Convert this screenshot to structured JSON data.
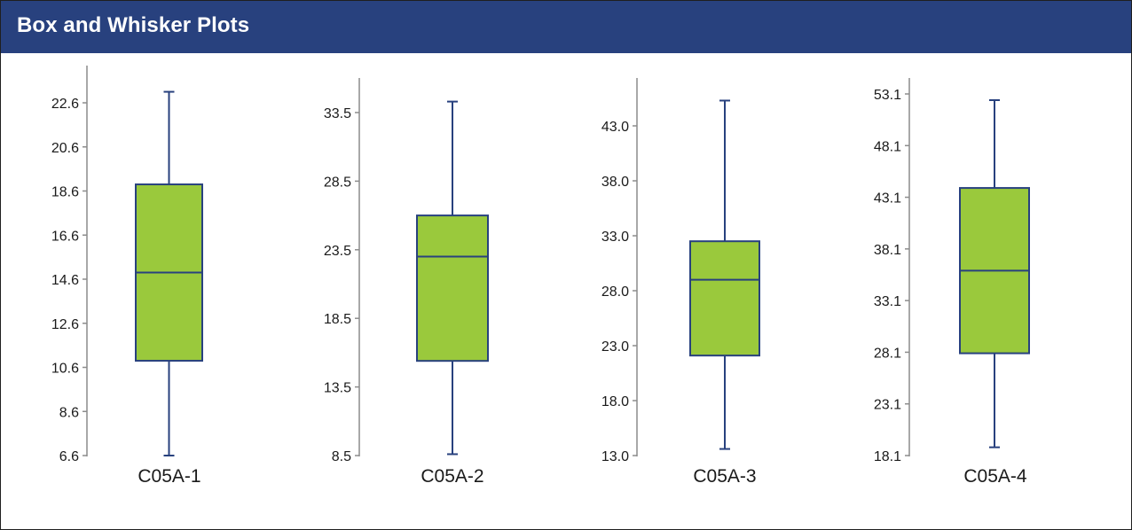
{
  "header": {
    "title": "Box and Whisker Plots"
  },
  "colors": {
    "header_bg": "#28417e",
    "box_fill": "#9ac93c",
    "box_stroke": "#28417e",
    "axis": "#8c8c8c"
  },
  "chart_data": [
    {
      "type": "box",
      "category": "C05A-1",
      "ylim": [
        6.6,
        23.6
      ],
      "yticks": [
        "6.6",
        "8.6",
        "10.6",
        "12.6",
        "14.6",
        "16.6",
        "18.6",
        "20.6",
        "22.6"
      ],
      "min": 6.6,
      "q1": 10.9,
      "median": 14.9,
      "q3": 18.9,
      "max": 23.1
    },
    {
      "type": "box",
      "category": "C05A-2",
      "ylim": [
        8.5,
        35.5
      ],
      "yticks": [
        "8.5",
        "13.5",
        "18.5",
        "23.5",
        "28.5",
        "33.5"
      ],
      "min": 8.6,
      "q1": 15.4,
      "median": 23.0,
      "q3": 26.0,
      "max": 34.3
    },
    {
      "type": "box",
      "category": "C05A-3",
      "ylim": [
        13.0,
        47.0
      ],
      "yticks": [
        "13.0",
        "18.0",
        "23.0",
        "28.0",
        "33.0",
        "38.0",
        "43.0"
      ],
      "min": 13.6,
      "q1": 22.1,
      "median": 29.0,
      "q3": 32.5,
      "max": 45.3
    },
    {
      "type": "box",
      "category": "C05A-4",
      "ylim": [
        18.1,
        55.1
      ],
      "yticks": [
        "18.1",
        "23.1",
        "28.1",
        "33.1",
        "38.1",
        "43.1",
        "48.1",
        "53.1"
      ],
      "min": 18.9,
      "q1": 28.0,
      "median": 36.0,
      "q3": 44.0,
      "max": 52.5
    }
  ]
}
